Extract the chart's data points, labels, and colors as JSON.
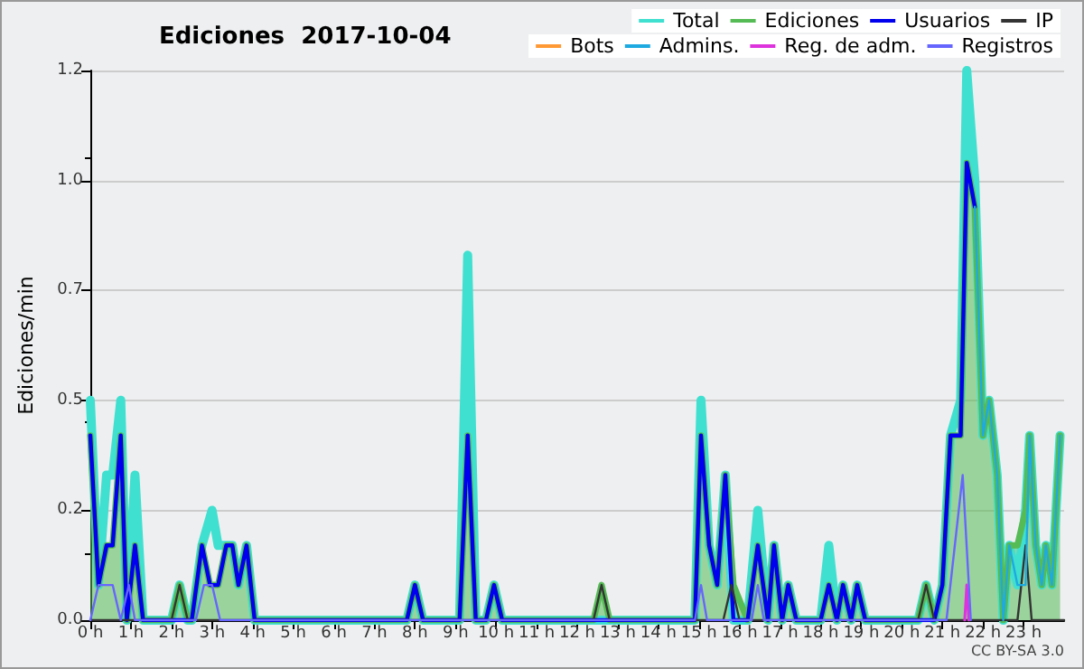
{
  "chart_data": {
    "type": "line",
    "title": "Ediciones  2017-10-04",
    "ylabel": "Ediciones/min",
    "annotations": [
      "CC BY-SA 3.0"
    ],
    "xlim": [
      0,
      24
    ],
    "xticks": [
      {
        "value": 0,
        "label": "0 h"
      },
      {
        "value": 1,
        "label": "1 h"
      },
      {
        "value": 2,
        "label": "2 h"
      },
      {
        "value": 3,
        "label": "3 h"
      },
      {
        "value": 4,
        "label": "4 h"
      },
      {
        "value": 5,
        "label": "5 h"
      },
      {
        "value": 6,
        "label": "6 h"
      },
      {
        "value": 7,
        "label": "7 h"
      },
      {
        "value": 8,
        "label": "8 h"
      },
      {
        "value": 9,
        "label": "9 h"
      },
      {
        "value": 10,
        "label": "10 h"
      },
      {
        "value": 11,
        "label": "11 h"
      },
      {
        "value": 12,
        "label": "12 h"
      },
      {
        "value": 13,
        "label": "13 h"
      },
      {
        "value": 14,
        "label": "14 h"
      },
      {
        "value": 15,
        "label": "15 h"
      },
      {
        "value": 16,
        "label": "16 h"
      },
      {
        "value": 17,
        "label": "17 h"
      },
      {
        "value": 18,
        "label": "18 h"
      },
      {
        "value": 19,
        "label": "19 h"
      },
      {
        "value": 20,
        "label": "20 h"
      },
      {
        "value": 21,
        "label": "21 h"
      },
      {
        "value": 22,
        "label": "22 h"
      },
      {
        "value": 23,
        "label": "23 h"
      }
    ],
    "ylim": [
      0,
      1.25
    ],
    "yticks": [
      {
        "value": 0,
        "label": "0.0"
      },
      {
        "value": 0.25,
        "label": "0.2"
      },
      {
        "value": 0.5,
        "label": "0.5"
      },
      {
        "value": 0.75,
        "label": "0.7"
      },
      {
        "value": 1,
        "label": "1.0"
      },
      {
        "value": 1.25,
        "label": "1.2"
      }
    ],
    "grid": "y",
    "legend": "top right",
    "marker": "none",
    "series": [
      {
        "name": "Total",
        "color": "#40e0d0",
        "x": [
          0,
          0.2,
          0.4,
          0.55,
          0.75,
          0.9,
          1.1,
          1.3,
          2.0,
          2.2,
          2.4,
          2.5,
          2.75,
          3.0,
          3.15,
          3.35,
          3.5,
          3.65,
          3.85,
          4.05,
          7.8,
          8.0,
          8.2,
          9.1,
          9.3,
          9.5,
          9.75,
          9.95,
          10.15,
          14.9,
          15.05,
          15.25,
          15.45,
          15.65,
          15.85,
          16.2,
          16.45,
          16.7,
          16.85,
          17.05,
          17.2,
          17.4,
          18.0,
          18.2,
          18.4,
          18.55,
          18.75,
          18.9,
          19.1,
          20.4,
          20.6,
          20.8,
          21.0,
          21.2,
          21.45,
          21.6,
          21.8,
          22.0,
          22.15,
          22.35,
          22.5,
          22.65,
          22.85,
          23.05,
          23.15,
          23.3,
          23.45,
          23.55,
          23.7,
          23.9
        ],
        "values": [
          0.5,
          0.08,
          0.33,
          0.33,
          0.5,
          0,
          0.33,
          0,
          0,
          0.08,
          0,
          0,
          0.17,
          0.25,
          0.17,
          0.17,
          0.17,
          0.08,
          0.17,
          0,
          0,
          0.08,
          0,
          0,
          0.83,
          0,
          0,
          0.08,
          0,
          0,
          0.5,
          0.17,
          0.08,
          0.33,
          0,
          0,
          0.25,
          0,
          0.17,
          0,
          0.08,
          0,
          0,
          0.17,
          0,
          0.08,
          0,
          0.08,
          0,
          0,
          0.08,
          0,
          0.08,
          0.42,
          0.5,
          1.25,
          1.0,
          0.42,
          0.5,
          0.33,
          0,
          0.17,
          0.08,
          0.25,
          0.42,
          0.17,
          0.08,
          0.17,
          0.08,
          0.42
        ]
      },
      {
        "name": "Ediciones",
        "type": "area",
        "color": "#55bb55",
        "x": [
          0,
          0.2,
          0.4,
          0.55,
          0.75,
          0.9,
          1.1,
          1.3,
          2.0,
          2.2,
          2.4,
          2.5,
          2.75,
          2.95,
          3.15,
          3.35,
          3.5,
          3.65,
          3.85,
          4.05,
          7.8,
          8.0,
          8.2,
          9.1,
          9.3,
          9.5,
          9.75,
          9.95,
          10.15,
          12.4,
          12.6,
          12.8,
          14.9,
          15.05,
          15.25,
          15.45,
          15.65,
          15.85,
          16.2,
          16.45,
          16.7,
          16.85,
          17.05,
          17.2,
          17.4,
          18.0,
          18.2,
          18.4,
          18.55,
          18.75,
          18.9,
          19.1,
          20.4,
          20.6,
          20.8,
          21.0,
          21.2,
          21.45,
          21.6,
          21.8,
          22.0,
          22.15,
          22.35,
          22.5,
          22.65,
          22.85,
          23.05,
          23.15,
          23.3,
          23.45,
          23.55,
          23.7,
          23.9
        ],
        "values": [
          0.42,
          0.08,
          0.17,
          0.17,
          0.42,
          0,
          0.17,
          0,
          0,
          0.08,
          0,
          0,
          0.17,
          0.08,
          0.08,
          0.17,
          0.17,
          0.08,
          0.17,
          0,
          0,
          0.08,
          0,
          0,
          0.42,
          0,
          0,
          0.08,
          0,
          0,
          0.08,
          0,
          0,
          0.42,
          0.17,
          0.08,
          0.33,
          0.08,
          0,
          0.17,
          0,
          0.17,
          0,
          0.08,
          0,
          0,
          0.08,
          0,
          0.08,
          0,
          0.08,
          0,
          0,
          0.08,
          0,
          0.08,
          0.42,
          0.42,
          1.04,
          0.94,
          0.42,
          0.5,
          0.33,
          0,
          0.17,
          0.17,
          0.25,
          0.42,
          0.17,
          0.08,
          0.17,
          0.08,
          0.42
        ]
      },
      {
        "name": "Usuarios",
        "color": "#0000ee",
        "x": [
          0,
          0.2,
          0.4,
          0.55,
          0.75,
          0.9,
          1.1,
          1.3,
          2.5,
          2.75,
          2.95,
          3.15,
          3.35,
          3.5,
          3.65,
          3.85,
          4.05,
          7.8,
          8.0,
          8.2,
          9.1,
          9.3,
          9.5,
          9.75,
          9.95,
          10.15,
          14.9,
          15.05,
          15.25,
          15.45,
          15.65,
          15.85,
          16.2,
          16.45,
          16.7,
          16.85,
          17.05,
          17.2,
          17.4,
          18.0,
          18.2,
          18.4,
          18.55,
          18.75,
          18.9,
          19.1,
          20.8,
          21.0,
          21.2,
          21.45,
          21.6,
          21.8
        ],
        "values": [
          0.42,
          0.08,
          0.17,
          0.17,
          0.42,
          0,
          0.17,
          0,
          0,
          0.17,
          0.08,
          0.08,
          0.17,
          0.17,
          0.08,
          0.17,
          0,
          0,
          0.08,
          0,
          0,
          0.42,
          0,
          0,
          0.08,
          0,
          0,
          0.42,
          0.17,
          0.08,
          0.33,
          0,
          0,
          0.17,
          0,
          0.17,
          0,
          0.08,
          0,
          0,
          0.08,
          0,
          0.08,
          0,
          0.08,
          0,
          0,
          0.08,
          0.42,
          0.42,
          1.04,
          0.94
        ]
      },
      {
        "name": "IP",
        "color": "#333333",
        "x": [
          0,
          2.0,
          2.2,
          2.4,
          12.4,
          12.6,
          12.8,
          15.6,
          15.8,
          16.0,
          20.4,
          20.6,
          20.8,
          22.85,
          23.05,
          23.2,
          24
        ],
        "values": [
          0,
          0,
          0.08,
          0,
          0,
          0.08,
          0,
          0,
          0.08,
          0,
          0,
          0.08,
          0,
          0,
          0.17,
          0,
          0
        ]
      },
      {
        "name": "Bots",
        "color": "#ff9933",
        "values": [
          null
        ]
      },
      {
        "name": "Admins.",
        "color": "#1eaae0",
        "x": [
          21.8,
          22.0,
          22.15,
          22.35,
          22.5,
          22.65,
          22.85,
          23.05,
          23.15,
          23.3,
          23.45,
          23.55,
          23.7,
          23.9
        ],
        "values": [
          0.94,
          0.42,
          0.5,
          0.33,
          0,
          0.17,
          0.08,
          0.08,
          0.42,
          0.17,
          0.08,
          0.17,
          0.08,
          0.42
        ]
      },
      {
        "name": "Reg. de adm.",
        "color": "#dd33dd",
        "x": [
          21.55,
          21.6,
          21.65
        ],
        "values": [
          0,
          0.08,
          0
        ]
      },
      {
        "name": "Registros",
        "color": "#6666ff",
        "x": [
          0,
          0.2,
          0.55,
          0.75,
          0.95,
          1.1,
          2.6,
          2.8,
          3.0,
          3.2,
          14.9,
          15.05,
          15.2,
          16.3,
          16.45,
          16.6,
          21.1,
          21.5,
          21.7
        ],
        "values": [
          0,
          0.08,
          0.08,
          0,
          0.08,
          0,
          0,
          0.08,
          0.08,
          0,
          0,
          0.08,
          0,
          0,
          0.08,
          0,
          0,
          0.33,
          0
        ]
      }
    ]
  }
}
